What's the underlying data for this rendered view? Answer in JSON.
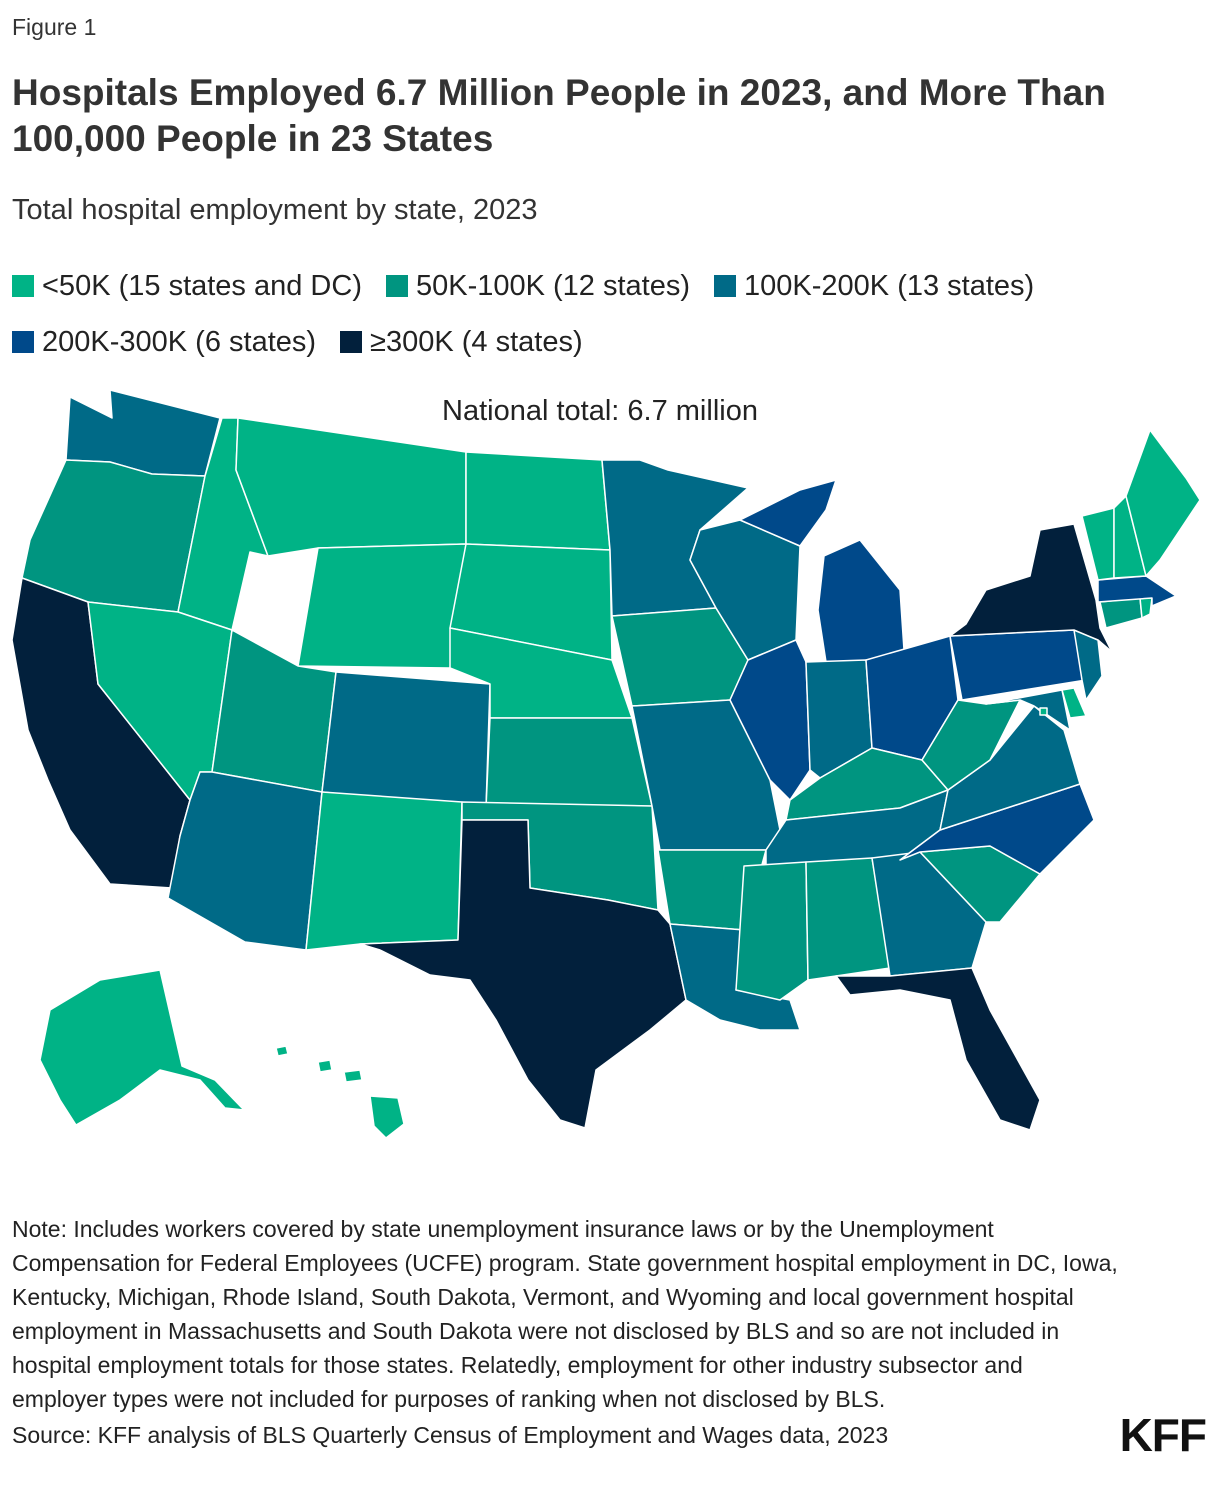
{
  "figure_label": "Figure 1",
  "title": "Hospitals Employed 6.7 Million People in 2023, and More Than 100,000 People in 23 States",
  "subtitle": "Total hospital employment by state, 2023",
  "national_total": "National total: 6.7 million",
  "legend": [
    {
      "label": "<50K (15 states and DC)",
      "color": "#00b386"
    },
    {
      "label": "50K-100K (12 states)",
      "color": "#009580"
    },
    {
      "label": "100K-200K (13 states)",
      "color": "#006a87"
    },
    {
      "label": "200K-300K (6 states)",
      "color": "#00498a"
    },
    {
      "label": "≥300K (4 states)",
      "color": "#02203c"
    }
  ],
  "chart_data": {
    "type": "choropleth",
    "categories": [
      "<50K",
      "50K-100K",
      "100K-200K",
      "200K-300K",
      "≥300K"
    ],
    "states": {
      "<50K": [
        "AK",
        "HI",
        "ID",
        "MT",
        "WY",
        "NV",
        "NM",
        "ND",
        "SD",
        "NE",
        "ME",
        "NH",
        "VT",
        "RI",
        "DE",
        "DC"
      ],
      "50K-100K": [
        "OR",
        "UT",
        "KS",
        "OK",
        "IA",
        "AR",
        "MS",
        "AL",
        "KY",
        "WV",
        "SC",
        "CT"
      ],
      "100K-200K": [
        "WA",
        "AZ",
        "CO",
        "MN",
        "WI",
        "MO",
        "LA",
        "IN",
        "TN",
        "GA",
        "VA",
        "MD",
        "NJ"
      ],
      "200K-300K": [
        "IL",
        "MI",
        "OH",
        "PA",
        "NC",
        "MA"
      ],
      "≥300K": [
        "CA",
        "TX",
        "NY",
        "FL"
      ]
    }
  },
  "note": "Note: Includes workers covered by state unemployment insurance laws or by the Unemployment Compensation for Federal Employees (UCFE) program. State government hospital employment in DC, Iowa, Kentucky, Michigan, Rhode Island, South Dakota, Vermont, and Wyoming and local government hospital employment in Massachusetts and South Dakota were not disclosed by BLS and so are not included in hospital employment totals for those states. Relatedly, employment for other industry subsector and employer types were not included for purposes of ranking when not disclosed by BLS.",
  "source": "Source: KFF analysis of BLS Quarterly Census of Employment and Wages data, 2023",
  "logo": "KFF"
}
